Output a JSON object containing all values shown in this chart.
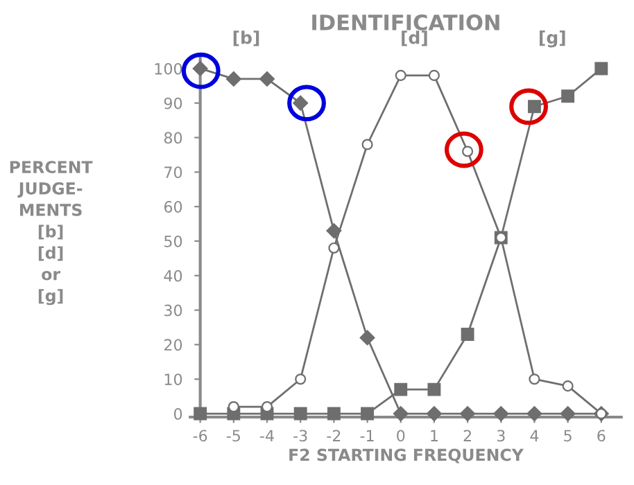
{
  "chart_data": {
    "type": "line",
    "title": "IDENTIFICATION",
    "xlabel": "F2 STARTING FREQUENCY",
    "ylabel": "PERCENT\nJUDGE-\nMENTS\n[b]\n[d]\nor\n[g]",
    "x": [
      -6,
      -5,
      -4,
      -3,
      -2,
      -1,
      0,
      1,
      2,
      3,
      4,
      5,
      6
    ],
    "xlim": [
      -6.3,
      6.6
    ],
    "xticks": [
      -6,
      -5,
      -4,
      -3,
      -2,
      -1,
      0,
      1,
      2,
      3,
      4,
      5,
      6
    ],
    "ylim": [
      -1,
      103
    ],
    "yticks": [
      0,
      10,
      20,
      30,
      40,
      50,
      60,
      70,
      80,
      90,
      100
    ],
    "grid": false,
    "legend": false,
    "series": [
      {
        "name": "[b]",
        "color": "#6e6e6e",
        "marker": "diamond",
        "values": [
          100,
          97,
          97,
          90,
          53,
          22,
          0,
          0,
          0,
          0,
          0,
          0,
          0
        ]
      },
      {
        "name": "[d]",
        "color": "#6e6e6e",
        "marker": "circle",
        "values": [
          null,
          2,
          2,
          10,
          48,
          78,
          98,
          98,
          76,
          51,
          10,
          8,
          0
        ]
      },
      {
        "name": "[g]",
        "color": "#6e6e6e",
        "marker": "square",
        "values": [
          0,
          0,
          0,
          0,
          0,
          0,
          7,
          7,
          23,
          51,
          89,
          92,
          100
        ]
      }
    ]
  }
}
